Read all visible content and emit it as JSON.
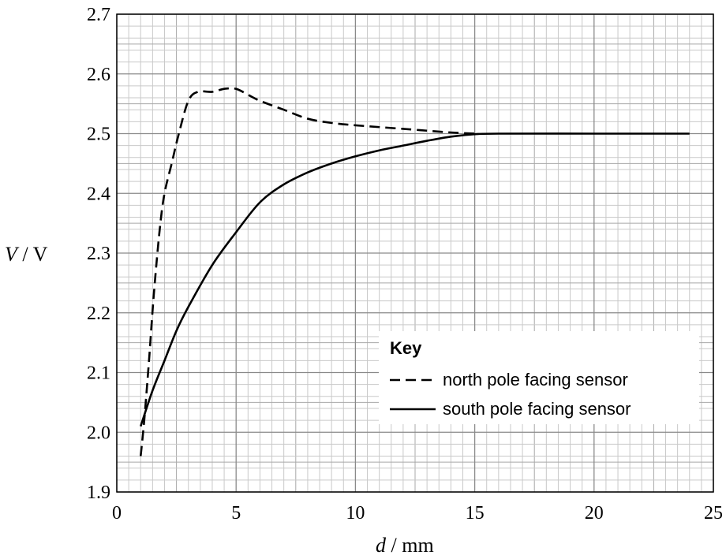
{
  "chart_data": {
    "type": "line",
    "title": "",
    "xlabel": {
      "var": "d",
      "unit": "mm"
    },
    "ylabel": {
      "var": "V",
      "unit": "V"
    },
    "xlim": [
      0,
      25
    ],
    "ylim": [
      1.9,
      2.7
    ],
    "x_ticks": [
      "0",
      "5",
      "10",
      "15",
      "20",
      "25"
    ],
    "y_ticks": [
      "1.9",
      "2.0",
      "2.1",
      "2.2",
      "2.3",
      "2.4",
      "2.5",
      "2.6",
      "2.7"
    ],
    "grid": true,
    "legend": {
      "title": "Key",
      "position": "bottom-right",
      "entries": [
        "north pole facing sensor",
        "south pole facing sensor"
      ]
    },
    "series": [
      {
        "name": "north pole facing sensor",
        "style": "dashed",
        "color": "#000000",
        "points": [
          [
            1.0,
            1.96
          ],
          [
            1.15,
            2.02
          ],
          [
            1.35,
            2.12
          ],
          [
            1.55,
            2.23
          ],
          [
            1.8,
            2.34
          ],
          [
            2.0,
            2.4
          ],
          [
            2.3,
            2.45
          ],
          [
            2.6,
            2.5
          ],
          [
            3.0,
            2.555
          ],
          [
            3.4,
            2.57
          ],
          [
            4.0,
            2.57
          ],
          [
            4.5,
            2.575
          ],
          [
            5.0,
            2.575
          ],
          [
            5.5,
            2.565
          ],
          [
            6.0,
            2.555
          ],
          [
            7.0,
            2.54
          ],
          [
            8.0,
            2.525
          ],
          [
            9.0,
            2.518
          ],
          [
            10.0,
            2.514
          ],
          [
            12.0,
            2.508
          ],
          [
            14.0,
            2.502
          ],
          [
            15.0,
            2.5
          ]
        ]
      },
      {
        "name": "south pole facing sensor",
        "style": "solid",
        "color": "#000000",
        "points": [
          [
            1.0,
            2.01
          ],
          [
            1.5,
            2.07
          ],
          [
            2.0,
            2.12
          ],
          [
            2.5,
            2.17
          ],
          [
            3.0,
            2.21
          ],
          [
            4.0,
            2.28
          ],
          [
            5.0,
            2.335
          ],
          [
            6.0,
            2.385
          ],
          [
            7.0,
            2.415
          ],
          [
            8.0,
            2.435
          ],
          [
            9.0,
            2.45
          ],
          [
            10.0,
            2.462
          ],
          [
            11.0,
            2.472
          ],
          [
            12.0,
            2.48
          ],
          [
            13.0,
            2.488
          ],
          [
            14.0,
            2.495
          ],
          [
            15.0,
            2.499
          ],
          [
            16.0,
            2.5
          ],
          [
            20.0,
            2.5
          ],
          [
            24.0,
            2.5
          ]
        ]
      }
    ]
  }
}
